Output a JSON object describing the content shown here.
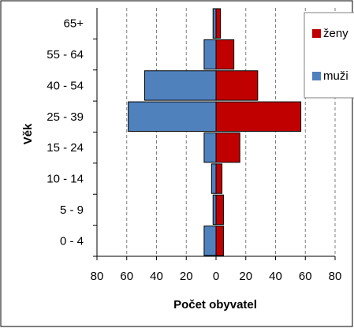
{
  "chart_data": {
    "type": "bar",
    "orientation": "horizontal",
    "layout": "population-pyramid",
    "categories": [
      "0 - 4",
      "5 - 9",
      "10 - 14",
      "15 - 24",
      "25 - 39",
      "40 - 54",
      "55 - 64",
      "65+"
    ],
    "series": [
      {
        "name": "muži",
        "side": "left",
        "color": "#4f81bd",
        "values": [
          8,
          2,
          3,
          8,
          59,
          48,
          8,
          2
        ]
      },
      {
        "name": "ženy",
        "side": "right",
        "color": "#c00000",
        "values": [
          5,
          5,
          4,
          16,
          57,
          28,
          12,
          3
        ]
      }
    ],
    "xlabel": "Počet obyvatel",
    "ylabel": "Věk",
    "x_ticks": [
      "80",
      "60",
      "40",
      "20",
      "0",
      "20",
      "40",
      "60",
      "80"
    ],
    "xlim": [
      -80,
      80
    ],
    "grid": "vertical-dashed",
    "legend": {
      "position": "right",
      "entries": [
        "ženy",
        "muži"
      ]
    }
  }
}
